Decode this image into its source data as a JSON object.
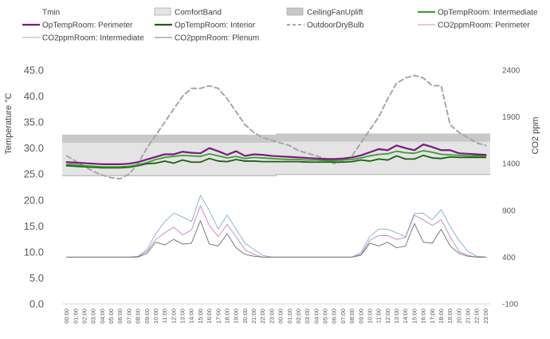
{
  "chart_data": {
    "type": "line",
    "title": "",
    "ylabel": "Temperature °C",
    "y2label": "CO2 ppm",
    "ylim": [
      0,
      45
    ],
    "y2lim": [
      -100,
      2400
    ],
    "yticks": [
      "0.0",
      "5.0",
      "10.0",
      "15.0",
      "20.0",
      "25.0",
      "30.0",
      "35.0",
      "40.0",
      "45.0"
    ],
    "y2ticks": [
      "-100",
      "400",
      "900",
      "1400",
      "1900",
      "2400"
    ],
    "x": [
      "00:00",
      "01:00",
      "02:00",
      "03:00",
      "04:00",
      "05:00",
      "06:00",
      "07:00",
      "08:00",
      "09:00",
      "10:00",
      "11:00",
      "12:00",
      "13:00",
      "14:00",
      "15:00",
      "16:00",
      "17:00",
      "18:00",
      "19:00",
      "20:00",
      "21:00",
      "22:00",
      "23:00",
      "00:00",
      "01:00",
      "02:00",
      "03:00",
      "04:00",
      "05:00",
      "06:00",
      "07:00",
      "08:00",
      "09:00",
      "10:00",
      "11:00",
      "12:00",
      "13:00",
      "14:00",
      "15:00",
      "16:00",
      "17:00",
      "18:00",
      "19:00",
      "20:00",
      "21:00",
      "22:00",
      "23:00"
    ],
    "legend": [
      {
        "name": "Tmin",
        "kind": "none",
        "color": "#ffffff"
      },
      {
        "name": "ComfortBand",
        "kind": "area",
        "color": "#e4e4e4"
      },
      {
        "name": "CeilingFanUplift",
        "kind": "area",
        "color": "#c8c8c8"
      },
      {
        "name": "OpTempRoom: Intermediate",
        "kind": "line",
        "color": "#3aa02a"
      },
      {
        "name": "OpTempRoom: Perimeter",
        "kind": "line",
        "color": "#7b1a80"
      },
      {
        "name": "OpTempRoom: Interior",
        "kind": "line",
        "color": "#1e5c14"
      },
      {
        "name": "OutdoorDryBulb",
        "kind": "dash",
        "color": "#a6a6a6"
      },
      {
        "name": "CO2ppmRoom: Perimeter",
        "kind": "thin",
        "color": "#c090c4"
      },
      {
        "name": "CO2ppmRoom: Intermediate",
        "kind": "thin",
        "color": "#8fb4cf"
      },
      {
        "name": "CO2ppmRoom: Plenum",
        "kind": "thin",
        "color": "#7a7a7a"
      }
    ],
    "comfort_band": {
      "lower": [
        24.7,
        24.7,
        24.7,
        24.7,
        24.7,
        24.7,
        24.7,
        24.7,
        24.7,
        24.7,
        24.7,
        24.7,
        24.7,
        24.7,
        24.7,
        24.7,
        24.7,
        24.7,
        24.7,
        24.7,
        24.7,
        24.7,
        24.7,
        24.7,
        24.9,
        24.9,
        24.9,
        24.9,
        24.9,
        24.9,
        24.9,
        24.9,
        24.9,
        24.9,
        24.9,
        24.9,
        24.9,
        24.9,
        24.9,
        24.9,
        24.9,
        24.9,
        24.9,
        24.9,
        24.9,
        24.9,
        24.9,
        24.9
      ],
      "upper": [
        31.0,
        31.0,
        31.0,
        31.0,
        31.0,
        31.0,
        31.0,
        31.0,
        31.0,
        31.0,
        31.0,
        31.0,
        31.0,
        31.0,
        31.0,
        31.0,
        31.0,
        31.0,
        31.0,
        31.0,
        31.0,
        31.0,
        31.0,
        31.0,
        31.2,
        31.2,
        31.2,
        31.2,
        31.2,
        31.2,
        31.2,
        31.2,
        31.2,
        31.2,
        31.2,
        31.2,
        31.2,
        31.2,
        31.2,
        31.2,
        31.2,
        31.2,
        31.2,
        31.2,
        31.2,
        31.2,
        31.2,
        31.2
      ]
    },
    "fan_uplift": {
      "upper": [
        32.6,
        32.6,
        32.6,
        32.6,
        32.6,
        32.6,
        32.6,
        32.6,
        32.6,
        32.6,
        32.6,
        32.6,
        32.6,
        32.6,
        32.6,
        32.6,
        32.6,
        32.6,
        32.6,
        32.6,
        32.6,
        32.6,
        32.6,
        32.6,
        32.8,
        32.8,
        32.8,
        32.8,
        32.8,
        32.8,
        32.8,
        32.8,
        32.8,
        32.8,
        32.8,
        32.8,
        32.8,
        32.8,
        32.8,
        32.8,
        32.8,
        32.8,
        32.8,
        32.8,
        32.8,
        32.8,
        32.8,
        32.8
      ]
    },
    "series": [
      {
        "name": "OutdoorDryBulb",
        "axis": "left",
        "color": "#a6a6a6",
        "width": 2,
        "dash": "6,4",
        "values": [
          28.5,
          27.5,
          26.5,
          25.5,
          24.8,
          24.3,
          24.1,
          25.0,
          27.0,
          30.0,
          32.5,
          35.0,
          37.5,
          40.0,
          41.5,
          41.5,
          42.0,
          41.5,
          39.5,
          37.0,
          34.5,
          33.0,
          32.0,
          31.5,
          31.0,
          30.5,
          29.5,
          29.0,
          28.5,
          28.0,
          27.0,
          27.5,
          28.5,
          31.0,
          33.5,
          36.0,
          39.5,
          42.5,
          43.5,
          44.0,
          43.5,
          42.0,
          42.0,
          34.5,
          33.0,
          32.0,
          31.0,
          30.5
        ]
      },
      {
        "name": "OpTempRoom: Intermediate",
        "axis": "left",
        "color": "#3aa02a",
        "width": 1.8,
        "values": [
          26.9,
          26.8,
          26.6,
          26.5,
          26.4,
          26.4,
          26.4,
          26.5,
          26.8,
          27.2,
          27.8,
          28.2,
          28.4,
          28.6,
          28.5,
          28.4,
          28.9,
          28.5,
          28.1,
          28.4,
          28.0,
          28.2,
          28.1,
          28.0,
          27.9,
          27.8,
          27.8,
          27.7,
          27.7,
          27.6,
          27.6,
          27.7,
          27.8,
          28.1,
          28.5,
          28.8,
          28.9,
          29.4,
          29.1,
          29.0,
          29.5,
          29.2,
          28.8,
          28.7,
          28.6,
          28.5,
          28.5,
          28.5
        ]
      },
      {
        "name": "OpTempRoom: Perimeter",
        "axis": "left",
        "color": "#7b1a80",
        "width": 2.2,
        "values": [
          27.3,
          27.2,
          27.1,
          27.0,
          26.9,
          26.9,
          26.9,
          27.0,
          27.3,
          27.8,
          28.3,
          28.8,
          28.8,
          29.3,
          29.1,
          29.0,
          30.0,
          29.4,
          28.7,
          29.4,
          28.5,
          28.8,
          28.7,
          28.5,
          28.4,
          28.3,
          28.2,
          28.1,
          28.0,
          27.9,
          27.9,
          28.0,
          28.2,
          28.6,
          29.2,
          29.8,
          29.6,
          30.5,
          30.0,
          29.6,
          30.7,
          30.2,
          29.6,
          29.6,
          29.0,
          28.9,
          28.8,
          28.7
        ]
      },
      {
        "name": "OpTempRoom: Interior",
        "axis": "left",
        "color": "#1e5c14",
        "width": 1.8,
        "values": [
          26.6,
          26.5,
          26.4,
          26.3,
          26.2,
          26.2,
          26.2,
          26.3,
          26.6,
          27.0,
          27.1,
          27.5,
          27.1,
          27.7,
          27.3,
          27.3,
          28.0,
          27.5,
          27.4,
          27.8,
          27.5,
          27.5,
          27.4,
          27.4,
          27.4,
          27.4,
          27.4,
          27.3,
          27.3,
          27.3,
          27.3,
          27.3,
          27.4,
          27.7,
          27.5,
          27.9,
          27.7,
          28.5,
          27.9,
          27.9,
          28.6,
          28.1,
          28.0,
          28.3,
          28.2,
          28.2,
          28.2,
          28.2
        ]
      },
      {
        "name": "CO2ppmRoom: Intermediate",
        "axis": "right",
        "color": "#8fb4cf",
        "width": 1,
        "values": [
          400,
          400,
          400,
          400,
          400,
          400,
          400,
          400,
          410,
          480,
          650,
          780,
          870,
          830,
          780,
          1060,
          900,
          700,
          850,
          700,
          550,
          480,
          420,
          400,
          400,
          400,
          400,
          400,
          400,
          400,
          400,
          400,
          400,
          450,
          620,
          700,
          700,
          660,
          620,
          870,
          870,
          800,
          910,
          730,
          580,
          460,
          410,
          400
        ]
      },
      {
        "name": "CO2ppmRoom: Perimeter",
        "axis": "right",
        "color": "#c090c4",
        "width": 1,
        "values": [
          400,
          400,
          400,
          400,
          400,
          400,
          400,
          400,
          405,
          460,
          590,
          660,
          720,
          640,
          690,
          950,
          740,
          620,
          750,
          620,
          480,
          430,
          400,
          400,
          400,
          400,
          400,
          400,
          400,
          400,
          400,
          400,
          400,
          430,
          580,
          630,
          630,
          590,
          610,
          850,
          800,
          740,
          800,
          620,
          460,
          420,
          400,
          400
        ]
      },
      {
        "name": "CO2ppmRoom: Plenum",
        "axis": "right",
        "color": "#7a7a7a",
        "width": 1,
        "values": [
          400,
          400,
          400,
          400,
          400,
          400,
          400,
          400,
          400,
          440,
          560,
          530,
          590,
          540,
          550,
          790,
          540,
          520,
          650,
          500,
          430,
          410,
          400,
          400,
          400,
          400,
          400,
          400,
          400,
          400,
          400,
          400,
          400,
          420,
          550,
          520,
          560,
          500,
          520,
          760,
          560,
          550,
          700,
          520,
          440,
          410,
          400,
          400
        ]
      }
    ]
  }
}
